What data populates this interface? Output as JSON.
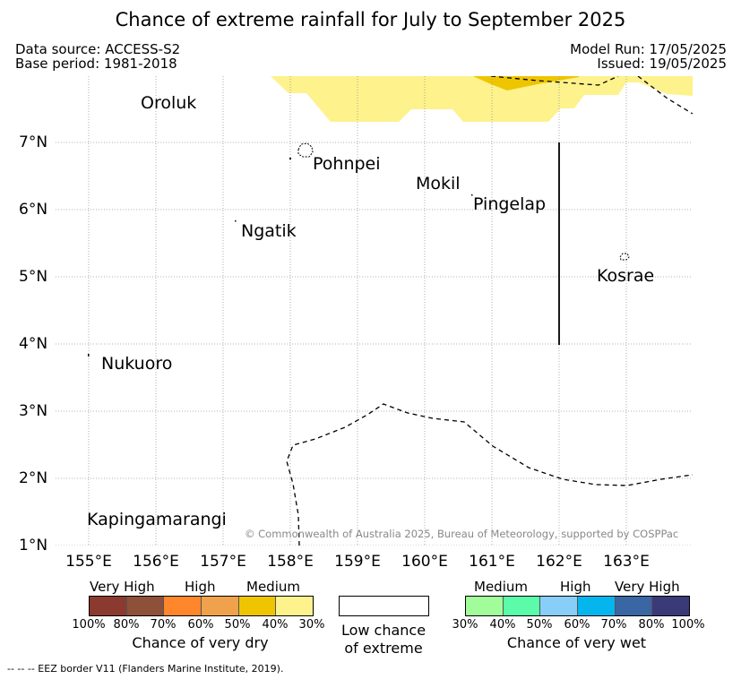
{
  "title": "Chance of extreme rainfall for July to September 2025",
  "meta": {
    "data_source": "Data source: ACCESS-S2",
    "base_period": "Base period: 1981-2018",
    "model_run": "Model Run: 17/05/2025",
    "issued": "Issued: 19/05/2025"
  },
  "map": {
    "lon_ticks": [
      "155°E",
      "156°E",
      "157°E",
      "158°E",
      "159°E",
      "160°E",
      "161°E",
      "162°E",
      "163°E"
    ],
    "lat_ticks": [
      "7°N",
      "6°N",
      "5°N",
      "4°N",
      "3°N",
      "2°N",
      "1°N"
    ],
    "places": {
      "oroluk": "Oroluk",
      "pohnpei": "Pohnpei",
      "mokil": "Mokil",
      "pingelap": "Pingelap",
      "ngatik": "Ngatik",
      "kosrae": "Kosrae",
      "nukuoro": "Nukuoro",
      "kapingamarangi": "Kapingamarangi"
    },
    "copyright": "© Commonwealth of Australia 2025, Bureau of Meteorology, supported by COSPPac",
    "colors": {
      "dry_30_40": "#fdf28c",
      "dry_40_50": "#eec500"
    }
  },
  "legend": {
    "dry": {
      "groups": [
        "Very High",
        "High",
        "Medium"
      ],
      "colors": [
        "#8b3a2f",
        "#8f5039",
        "#fe862b",
        "#efa14b",
        "#eec500",
        "#fdf28c"
      ],
      "ticks": [
        "100%",
        "80%",
        "70%",
        "60%",
        "50%",
        "40%",
        "30%"
      ],
      "title": "Chance of very dry"
    },
    "low": {
      "line1": "Low chance",
      "line2": "of extreme"
    },
    "wet": {
      "groups": [
        "Medium",
        "High",
        "Very High"
      ],
      "colors": [
        "#a2fc9a",
        "#5bfba9",
        "#87cef8",
        "#05b5ee",
        "#3a66a3",
        "#3b3a78"
      ],
      "ticks": [
        "30%",
        "40%",
        "50%",
        "60%",
        "70%",
        "80%",
        "100%"
      ],
      "title": "Chance of very wet"
    }
  },
  "footer": "--  --  -- EEZ border V11 (Flanders Marine Institute, 2019)."
}
